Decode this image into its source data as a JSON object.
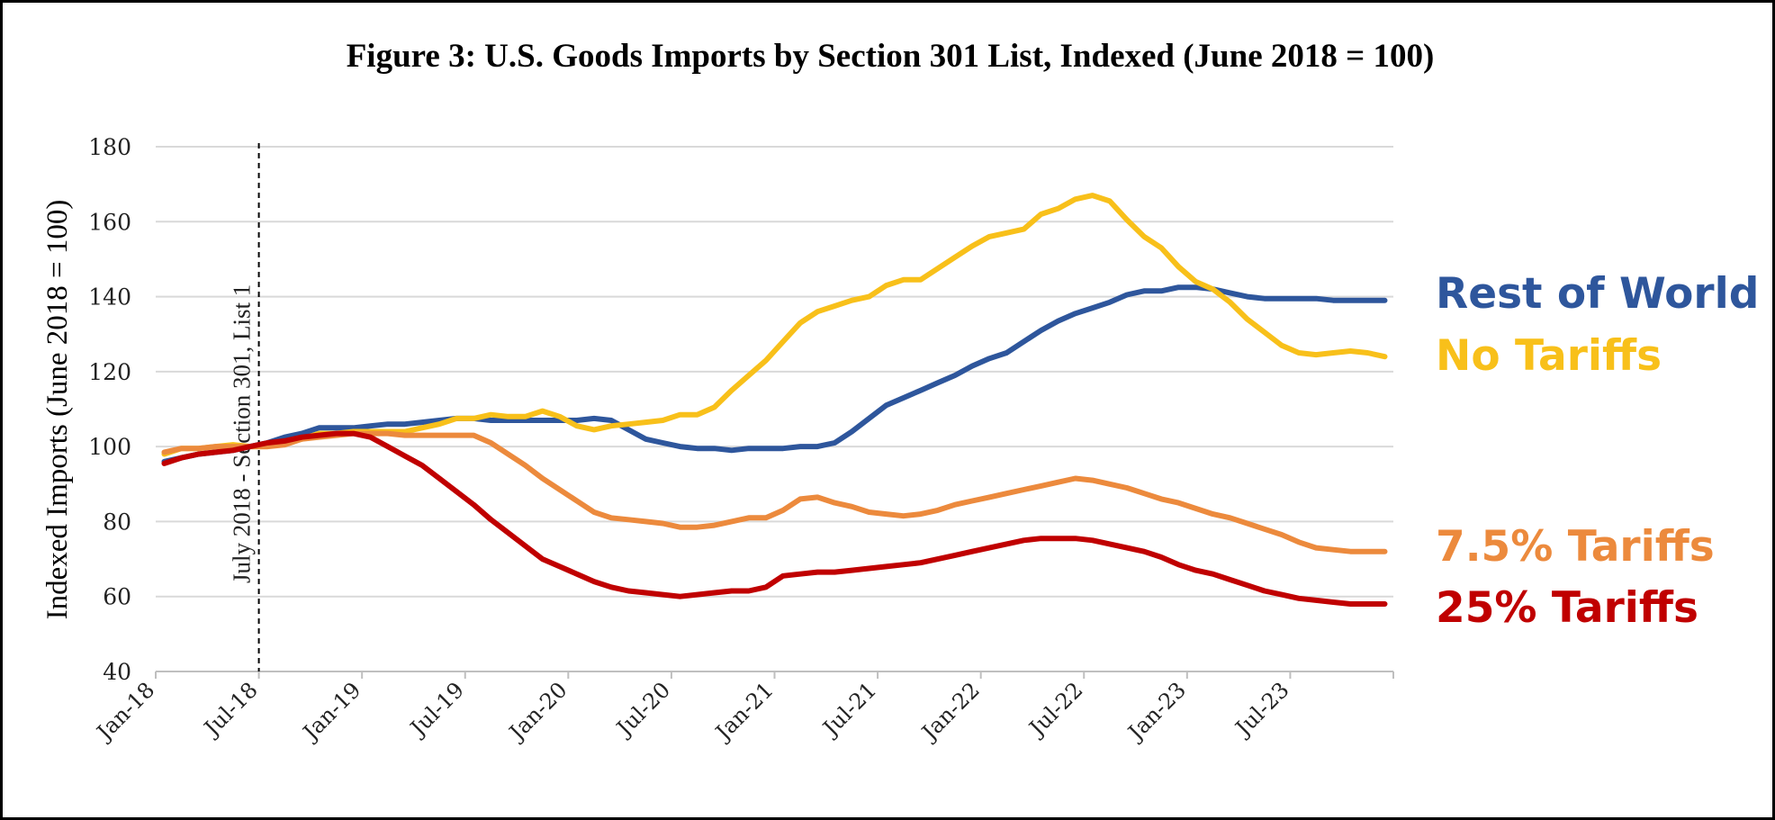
{
  "chart_data": {
    "type": "line",
    "title": "Figure 3: U.S. Goods Imports by Section 301 List, Indexed (June 2018 = 100)",
    "ylabel": "Indexed Imports (June 2018 = 100)",
    "xlabel": "",
    "ylim": [
      40,
      180
    ],
    "yticks": [
      "40",
      "60",
      "80",
      "100",
      "120",
      "140",
      "160",
      "180"
    ],
    "xtick_labels": [
      "Jan-18",
      "Jul-18",
      "Jan-19",
      "Jul-19",
      "Jan-20",
      "Jul-20",
      "Jan-21",
      "Jul-21",
      "Jan-22",
      "Jul-22",
      "Jan-23",
      "Jul-23"
    ],
    "x": [
      "2018-01",
      "2018-02",
      "2018-03",
      "2018-04",
      "2018-05",
      "2018-06",
      "2018-07",
      "2018-08",
      "2018-09",
      "2018-10",
      "2018-11",
      "2018-12",
      "2019-01",
      "2019-02",
      "2019-03",
      "2019-04",
      "2019-05",
      "2019-06",
      "2019-07",
      "2019-08",
      "2019-09",
      "2019-10",
      "2019-11",
      "2019-12",
      "2020-01",
      "2020-02",
      "2020-03",
      "2020-04",
      "2020-05",
      "2020-06",
      "2020-07",
      "2020-08",
      "2020-09",
      "2020-10",
      "2020-11",
      "2020-12",
      "2021-01",
      "2021-02",
      "2021-03",
      "2021-04",
      "2021-05",
      "2021-06",
      "2021-07",
      "2021-08",
      "2021-09",
      "2021-10",
      "2021-11",
      "2021-12",
      "2022-01",
      "2022-02",
      "2022-03",
      "2022-04",
      "2022-05",
      "2022-06",
      "2022-07",
      "2022-08",
      "2022-09",
      "2022-10",
      "2022-11",
      "2022-12",
      "2023-01",
      "2023-02",
      "2023-03",
      "2023-04",
      "2023-05",
      "2023-06",
      "2023-07",
      "2023-08",
      "2023-09",
      "2023-10",
      "2023-11",
      "2023-12"
    ],
    "annotation": {
      "label": "July 2018 - Section 301, List 1",
      "x": "2018-07"
    },
    "grid": "horizontal",
    "legend": "right, inline labels",
    "series": [
      {
        "name": "Rest of World",
        "color": "#2e569c",
        "values": [
          96,
          97,
          98,
          98.5,
          99,
          100,
          101,
          102.5,
          103.5,
          105,
          105,
          105,
          105.5,
          106,
          106,
          106.5,
          107,
          107.5,
          107.5,
          107,
          107,
          107,
          107,
          107,
          107,
          107.5,
          107,
          104.5,
          102,
          101,
          100,
          99.5,
          99.5,
          99,
          99.5,
          99.5,
          99.5,
          100,
          100,
          101,
          104,
          107.5,
          111,
          113,
          115,
          117,
          119,
          121.5,
          123.5,
          125,
          128,
          131,
          133.5,
          135.5,
          137,
          138.5,
          140.5,
          141.5,
          141.5,
          142.5,
          142.5,
          142,
          141,
          140,
          139.5,
          139.5,
          139.5,
          139.5,
          139,
          139,
          139,
          139
        ]
      },
      {
        "name": "No Tariffs",
        "color": "#f8c01a",
        "values": [
          98,
          99.5,
          99.5,
          100,
          100.5,
          100,
          100,
          101,
          102,
          103.5,
          103.5,
          104,
          104,
          104,
          104,
          105,
          106,
          107.5,
          107.5,
          108.5,
          108,
          108,
          109.5,
          108,
          105.5,
          104.5,
          105.5,
          106,
          106.5,
          107,
          108.5,
          108.5,
          110.5,
          115,
          119,
          123,
          128,
          133,
          136,
          137.5,
          139,
          140,
          143,
          144.5,
          144.5,
          147.5,
          150.5,
          153.5,
          156,
          157,
          158,
          162,
          163.5,
          166,
          167,
          165.5,
          160.5,
          156,
          153,
          148,
          144,
          142,
          138.5,
          134,
          130.5,
          127,
          125,
          124.5,
          125,
          125.5,
          125,
          124
        ]
      },
      {
        "name": "7.5% Tariffs",
        "color": "#ec8a3d",
        "values": [
          98.5,
          99.5,
          99.5,
          100,
          100,
          100,
          100,
          100.5,
          102,
          102.5,
          103,
          103.5,
          103.5,
          103.5,
          103,
          103,
          103,
          103,
          103,
          101,
          98,
          95,
          91.5,
          88.5,
          85.5,
          82.5,
          81,
          80.5,
          80,
          79.5,
          78.5,
          78.5,
          79,
          80,
          81,
          81,
          83,
          86,
          86.5,
          85,
          84,
          82.5,
          82,
          81.5,
          82,
          83,
          84.5,
          85.5,
          86.5,
          87.5,
          88.5,
          89.5,
          90.5,
          91.5,
          91,
          90,
          89,
          87.5,
          86,
          85,
          83.5,
          82,
          81,
          79.5,
          78,
          76.5,
          74.5,
          73,
          72.5,
          72,
          72,
          72
        ]
      },
      {
        "name": "25% Tariffs",
        "color": "#c00000",
        "values": [
          95.5,
          97,
          98,
          98.5,
          99,
          100,
          101,
          101.5,
          102.5,
          103,
          103.5,
          103.5,
          102.5,
          100,
          97.5,
          95,
          91.5,
          88,
          84.5,
          80.5,
          77,
          73.5,
          70,
          68,
          66,
          64,
          62.5,
          61.5,
          61,
          60.5,
          60,
          60.5,
          61,
          61.5,
          61.5,
          62.5,
          65.5,
          66,
          66.5,
          66.5,
          67,
          67.5,
          68,
          68.5,
          69,
          70,
          71,
          72,
          73,
          74,
          75,
          75.5,
          75.5,
          75.5,
          75,
          74,
          73,
          72,
          70.5,
          68.5,
          67,
          66,
          64.5,
          63,
          61.5,
          60.5,
          59.5,
          59,
          58.5,
          58,
          58,
          58
        ]
      }
    ]
  }
}
